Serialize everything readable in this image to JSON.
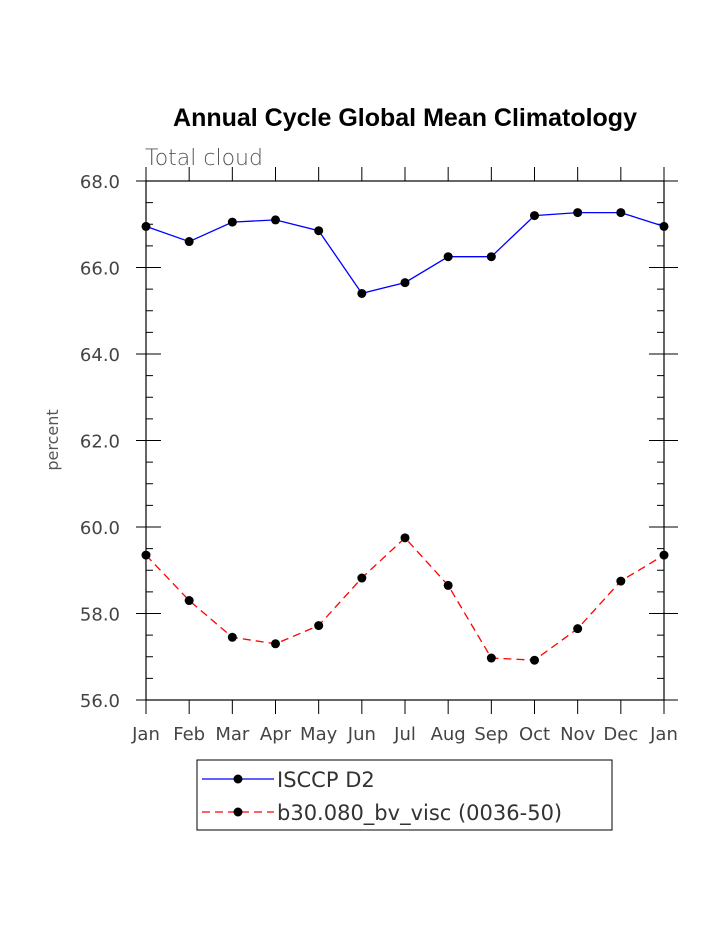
{
  "chart_data": {
    "type": "line",
    "title": "Annual Cycle Global Mean Climatology",
    "subtitle": "Total cloud",
    "xlabel": "",
    "ylabel": "percent",
    "categories": [
      "Jan",
      "Feb",
      "Mar",
      "Apr",
      "May",
      "Jun",
      "Jul",
      "Aug",
      "Sep",
      "Oct",
      "Nov",
      "Dec",
      "Jan"
    ],
    "ylim": [
      56.0,
      68.0
    ],
    "yticks": [
      56.0,
      58.0,
      60.0,
      62.0,
      64.0,
      66.0,
      68.0
    ],
    "ytick_labels": [
      "56.0",
      "58.0",
      "60.0",
      "62.0",
      "64.0",
      "66.0",
      "68.0"
    ],
    "series": [
      {
        "name": "ISCCP D2",
        "color": "#0000ff",
        "style": "solid",
        "values": [
          66.95,
          66.6,
          67.05,
          67.1,
          66.85,
          65.4,
          65.65,
          66.25,
          66.25,
          67.2,
          67.27,
          67.27,
          66.95
        ]
      },
      {
        "name": "b30.080_bv_visc (0036-50)",
        "color": "#ff0000",
        "style": "dashed",
        "values": [
          59.35,
          58.3,
          57.45,
          57.3,
          57.72,
          58.82,
          59.75,
          58.65,
          56.97,
          56.92,
          57.65,
          58.75,
          59.35
        ]
      }
    ],
    "legend_position": "bottom"
  }
}
